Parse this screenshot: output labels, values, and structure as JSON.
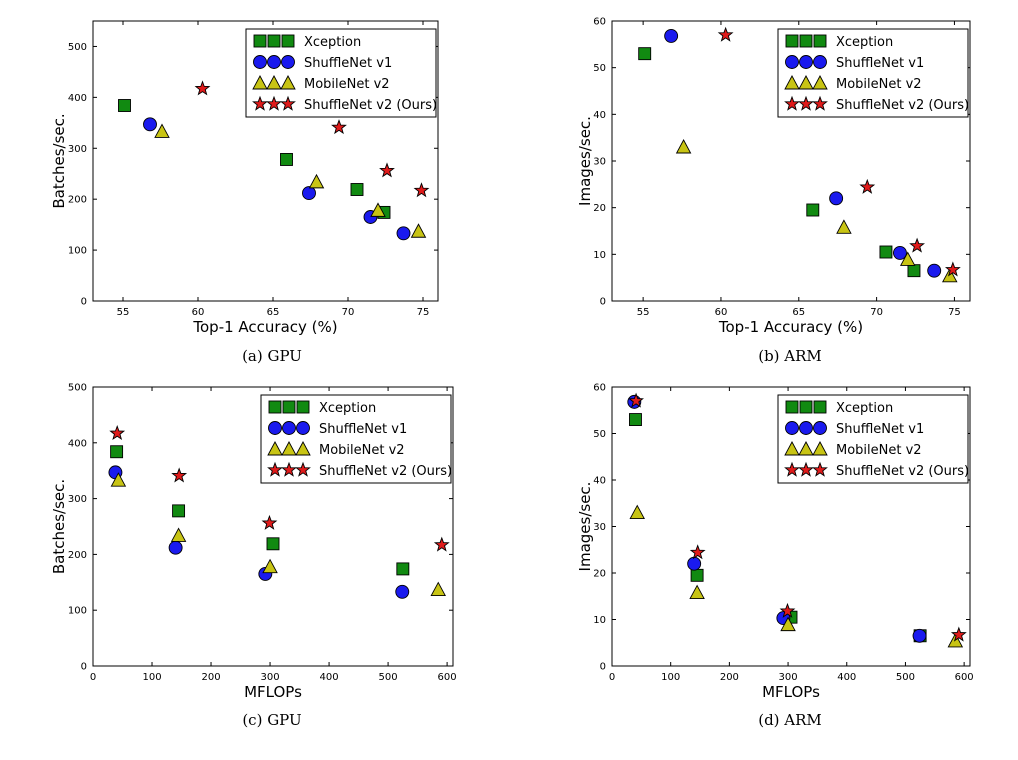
{
  "figure": {
    "legend_labels": [
      "Xception",
      "ShuffleNet v1",
      "MobileNet v2",
      "ShuffleNet v2 (Ours)"
    ],
    "series_colors": {
      "Xception": "#118a11",
      "ShuffleNet v1": "#1a1aee",
      "MobileNet v2": "#c8c414",
      "ShuffleNet v2 (Ours)": "#e01b1b"
    }
  },
  "chart_data": [
    {
      "type": "scatter",
      "caption": "(a) GPU",
      "xlabel": "Top-1 Accuracy (%)",
      "ylabel": "Batches/sec.",
      "xlim": [
        53,
        76
      ],
      "ylim": [
        0,
        550
      ],
      "xticks": [
        55,
        60,
        65,
        70,
        75
      ],
      "yticks": [
        0,
        100,
        200,
        300,
        400,
        500
      ],
      "legend_position": "top-right",
      "series": [
        {
          "name": "Xception",
          "marker": "square",
          "points": [
            [
              55.1,
              384
            ],
            [
              65.9,
              278
            ],
            [
              70.6,
              219
            ],
            [
              72.4,
              174
            ]
          ]
        },
        {
          "name": "ShuffleNet v1",
          "marker": "circle",
          "points": [
            [
              56.8,
              347
            ],
            [
              67.4,
              212
            ],
            [
              71.5,
              165
            ],
            [
              73.7,
              133
            ]
          ]
        },
        {
          "name": "MobileNet v2",
          "marker": "triangle",
          "points": [
            [
              57.6,
              333
            ],
            [
              67.9,
              234
            ],
            [
              72.0,
              178
            ],
            [
              74.7,
              137
            ]
          ]
        },
        {
          "name": "ShuffleNet v2 (Ours)",
          "marker": "star",
          "points": [
            [
              60.3,
              417
            ],
            [
              69.4,
              341
            ],
            [
              72.6,
              256
            ],
            [
              74.9,
              217
            ]
          ]
        }
      ]
    },
    {
      "type": "scatter",
      "caption": "(b) ARM",
      "xlabel": "Top-1 Accuracy (%)",
      "ylabel": "Images/sec.",
      "xlim": [
        53,
        76
      ],
      "ylim": [
        0,
        60
      ],
      "xticks": [
        55,
        60,
        65,
        70,
        75
      ],
      "yticks": [
        0,
        10,
        20,
        30,
        40,
        50,
        60
      ],
      "legend_position": "top-right",
      "series": [
        {
          "name": "Xception",
          "marker": "square",
          "points": [
            [
              55.1,
              53.0
            ],
            [
              65.9,
              19.5
            ],
            [
              70.6,
              10.5
            ],
            [
              72.4,
              6.5
            ]
          ]
        },
        {
          "name": "ShuffleNet v1",
          "marker": "circle",
          "points": [
            [
              56.8,
              56.8
            ],
            [
              67.4,
              22.0
            ],
            [
              71.5,
              10.3
            ],
            [
              73.7,
              6.5
            ]
          ]
        },
        {
          "name": "MobileNet v2",
          "marker": "triangle",
          "points": [
            [
              57.6,
              33.0
            ],
            [
              67.9,
              15.8
            ],
            [
              72.0,
              8.9
            ],
            [
              74.7,
              5.4
            ]
          ]
        },
        {
          "name": "ShuffleNet v2 (Ours)",
          "marker": "star",
          "points": [
            [
              60.3,
              57.0
            ],
            [
              69.4,
              24.4
            ],
            [
              72.6,
              11.8
            ],
            [
              74.9,
              6.7
            ]
          ]
        }
      ]
    },
    {
      "type": "scatter",
      "caption": "(c) GPU",
      "xlabel": "MFLOPs",
      "ylabel": "Batches/sec.",
      "xlim": [
        0,
        610
      ],
      "ylim": [
        0,
        500
      ],
      "xticks": [
        0,
        100,
        200,
        300,
        400,
        500,
        600
      ],
      "yticks": [
        0,
        100,
        200,
        300,
        400,
        500
      ],
      "legend_position": "top-right",
      "series": [
        {
          "name": "Xception",
          "marker": "square",
          "points": [
            [
              40,
              384
            ],
            [
              145,
              278
            ],
            [
              305,
              219
            ],
            [
              525,
              174
            ]
          ]
        },
        {
          "name": "ShuffleNet v1",
          "marker": "circle",
          "points": [
            [
              38,
              347
            ],
            [
              140,
              212
            ],
            [
              292,
              165
            ],
            [
              524,
              133
            ]
          ]
        },
        {
          "name": "MobileNet v2",
          "marker": "triangle",
          "points": [
            [
              43,
              333
            ],
            [
              145,
              234
            ],
            [
              300,
              178
            ],
            [
              585,
              137
            ]
          ]
        },
        {
          "name": "ShuffleNet v2 (Ours)",
          "marker": "star",
          "points": [
            [
              41,
              417
            ],
            [
              146,
              341
            ],
            [
              299,
              256
            ],
            [
              591,
              217
            ]
          ]
        }
      ]
    },
    {
      "type": "scatter",
      "caption": "(d) ARM",
      "xlabel": "MFLOPs",
      "ylabel": "Images/sec.",
      "xlim": [
        0,
        610
      ],
      "ylim": [
        0,
        60
      ],
      "xticks": [
        0,
        100,
        200,
        300,
        400,
        500,
        600
      ],
      "yticks": [
        0,
        10,
        20,
        30,
        40,
        50,
        60
      ],
      "legend_position": "top-right",
      "series": [
        {
          "name": "Xception",
          "marker": "square",
          "points": [
            [
              40,
              53.0
            ],
            [
              145,
              19.5
            ],
            [
              305,
              10.5
            ],
            [
              525,
              6.5
            ]
          ]
        },
        {
          "name": "ShuffleNet v1",
          "marker": "circle",
          "points": [
            [
              38,
              56.8
            ],
            [
              140,
              22.0
            ],
            [
              292,
              10.3
            ],
            [
              524,
              6.5
            ]
          ]
        },
        {
          "name": "MobileNet v2",
          "marker": "triangle",
          "points": [
            [
              43,
              33.0
            ],
            [
              145,
              15.8
            ],
            [
              300,
              8.9
            ],
            [
              585,
              5.4
            ]
          ]
        },
        {
          "name": "ShuffleNet v2 (Ours)",
          "marker": "star",
          "points": [
            [
              41,
              57.0
            ],
            [
              146,
              24.4
            ],
            [
              299,
              11.8
            ],
            [
              591,
              6.7
            ]
          ]
        }
      ]
    }
  ]
}
